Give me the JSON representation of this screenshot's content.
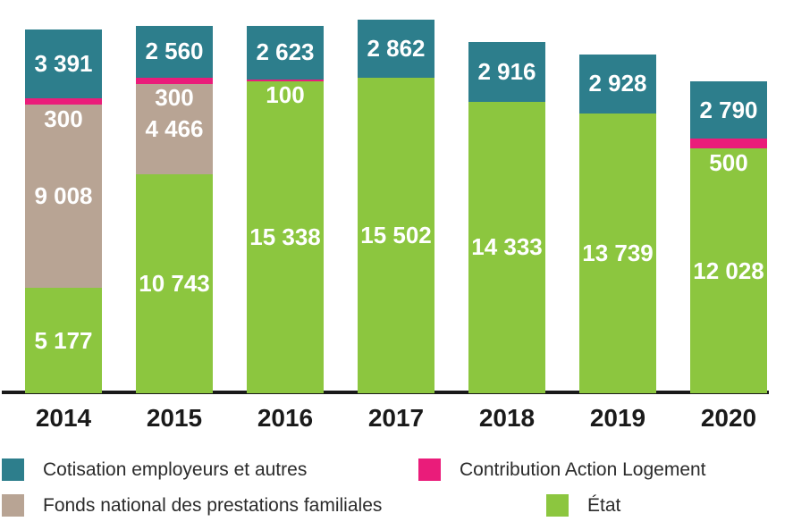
{
  "chart_data": {
    "type": "bar",
    "stacked": true,
    "title": "",
    "xlabel": "",
    "ylabel": "",
    "grid": false,
    "legend_position": "bottom",
    "ylim": [
      0,
      19330
    ],
    "categories": [
      "2014",
      "2015",
      "2016",
      "2017",
      "2018",
      "2019",
      "2020"
    ],
    "series": [
      {
        "id": "cotisation-employeurs",
        "name": "Cotisation employeurs et autres",
        "color": "#2D7E8C",
        "label_below": false,
        "values": [
          3391,
          2560,
          2623,
          2862,
          2916,
          2928,
          2790
        ]
      },
      {
        "id": "action-logement",
        "name": "Contribution Action Logement",
        "color": "#EA1C7A",
        "label_below": true,
        "values": [
          300,
          300,
          100,
          0,
          0,
          0,
          500
        ]
      },
      {
        "id": "fnpf",
        "name": "Fonds national des prestations familiales",
        "color": "#B8A494",
        "label_below": false,
        "values": [
          9008,
          4466,
          0,
          0,
          0,
          0,
          0
        ]
      },
      {
        "id": "etat",
        "name": "État",
        "color": "#8CC63F",
        "label_below": false,
        "values": [
          5177,
          10743,
          15338,
          15502,
          14333,
          13739,
          12028
        ]
      }
    ],
    "value_label_color": "#FFFFFF",
    "axis_color": "#1A1A1A",
    "category_label_color": "#1A1A1A",
    "legend_text_color": "#2B2B2B"
  }
}
